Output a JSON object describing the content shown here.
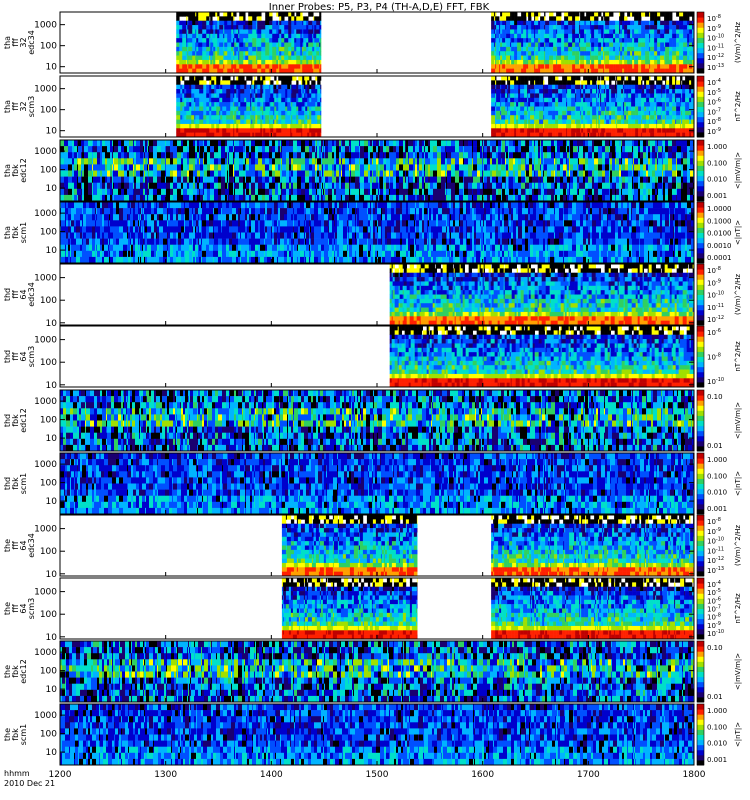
{
  "title": "Inner Probes: P5, P3, P4 (TH-A,D,E) FFT, FBK",
  "colors": {
    "frame": "#000000",
    "empty": "#ffffff",
    "colormap": [
      "#000000",
      "#1a0070",
      "#0000cc",
      "#0050ff",
      "#00b4ff",
      "#00e0c8",
      "#30d060",
      "#a0e000",
      "#ffff00",
      "#ffa000",
      "#ff2000",
      "#c00000"
    ]
  },
  "chart_data": [
    {
      "type": "heatmap",
      "ylabel": [
        "tha",
        "fff",
        "32",
        "edc34"
      ],
      "ylim": [
        5,
        4000
      ],
      "yscale": "log",
      "yticks": [
        "1000",
        "100",
        "10"
      ],
      "yticks_v": [
        1000,
        100,
        10
      ],
      "coverage": [
        [
          1310,
          1447
        ],
        [
          1608,
          1800
        ]
      ],
      "colorbar_ticks": [
        "10^-8",
        "10^-9",
        "10^-10",
        "10^-11",
        "10^-12",
        "10^-13"
      ],
      "colorbar_unit": "(V/m)^2/Hz",
      "style": "fffe",
      "seed": 11
    },
    {
      "type": "heatmap",
      "ylabel": [
        "tha",
        "fff",
        "32",
        "scm3"
      ],
      "ylim": [
        5,
        4000
      ],
      "yscale": "log",
      "yticks": [
        "1000",
        "100",
        "10"
      ],
      "yticks_v": [
        1000,
        100,
        10
      ],
      "coverage": [
        [
          1310,
          1447
        ],
        [
          1608,
          1800
        ]
      ],
      "colorbar_ticks": [
        "10^-4",
        "10^-5",
        "10^-6",
        "10^-7",
        "10^-8",
        "10^-9"
      ],
      "colorbar_unit": "nT^2/Hz",
      "style": "fffb",
      "seed": 23
    },
    {
      "type": "heatmap",
      "ylabel": [
        "tha",
        "fbk",
        "edc12"
      ],
      "ylim": [
        2,
        4000
      ],
      "yscale": "log",
      "yticks": [
        "1000",
        "100",
        "10"
      ],
      "yticks_v": [
        1000,
        100,
        10
      ],
      "coverage": [
        [
          1200,
          1800
        ]
      ],
      "colorbar_ticks": [
        "1.000",
        "0.100",
        "0.010",
        "0.001"
      ],
      "colorbar_unit": "<|mV/m|>",
      "style": "fbke",
      "seed": 37
    },
    {
      "type": "heatmap",
      "ylabel": [
        "tha",
        "fbk",
        "scm1"
      ],
      "ylim": [
        2,
        4000
      ],
      "yscale": "log",
      "yticks": [
        "1000",
        "100",
        "10"
      ],
      "yticks_v": [
        1000,
        100,
        10
      ],
      "coverage": [
        [
          1200,
          1800
        ]
      ],
      "colorbar_ticks": [
        "1.0000",
        "0.1000",
        "0.0100",
        "0.0010",
        "0.0001"
      ],
      "colorbar_unit": "<|nT|>",
      "style": "fbkb",
      "seed": 41
    },
    {
      "type": "heatmap",
      "ylabel": [
        "thd",
        "fff",
        "64",
        "edc34"
      ],
      "ylim": [
        8,
        4000
      ],
      "yscale": "log",
      "yticks": [
        "1000",
        "100",
        "10"
      ],
      "yticks_v": [
        1000,
        100,
        10
      ],
      "coverage": [
        [
          1512,
          1800
        ]
      ],
      "colorbar_ticks": [
        "10^-8",
        "10^-9",
        "10^-10",
        "10^-11",
        "10^-12"
      ],
      "colorbar_unit": "(V/m)^2/Hz",
      "style": "fffe",
      "seed": 53
    },
    {
      "type": "heatmap",
      "ylabel": [
        "thd",
        "fff",
        "64",
        "scm3"
      ],
      "ylim": [
        8,
        4000
      ],
      "yscale": "log",
      "yticks": [
        "1000",
        "100",
        "10"
      ],
      "yticks_v": [
        1000,
        100,
        10
      ],
      "coverage": [
        [
          1512,
          1800
        ]
      ],
      "colorbar_ticks": [
        "10^-6",
        "10^-8",
        "10^-10"
      ],
      "colorbar_unit": "nT^2/Hz",
      "style": "fffb",
      "seed": 67
    },
    {
      "type": "heatmap",
      "ylabel": [
        "thd",
        "fbk",
        "edc12"
      ],
      "ylim": [
        2,
        4000
      ],
      "yscale": "log",
      "yticks": [
        "1000",
        "100",
        "10"
      ],
      "yticks_v": [
        1000,
        100,
        10
      ],
      "coverage": [
        [
          1200,
          1800
        ]
      ],
      "colorbar_ticks": [
        "0.10",
        "0.01"
      ],
      "colorbar_unit": "<|mV/m|>",
      "style": "fbke",
      "seed": 71
    },
    {
      "type": "heatmap",
      "ylabel": [
        "thd",
        "fbk",
        "scm1"
      ],
      "ylim": [
        2,
        4000
      ],
      "yscale": "log",
      "yticks": [
        "1000",
        "100",
        "10"
      ],
      "yticks_v": [
        1000,
        100,
        10
      ],
      "coverage": [
        [
          1200,
          1800
        ]
      ],
      "colorbar_ticks": [
        "1.000",
        "0.100",
        "0.010",
        "0.001"
      ],
      "colorbar_unit": "<|nT|>",
      "style": "fbkb",
      "seed": 83
    },
    {
      "type": "heatmap",
      "ylabel": [
        "the",
        "fff",
        "64",
        "edc34"
      ],
      "ylim": [
        8,
        4000
      ],
      "yscale": "log",
      "yticks": [
        "1000",
        "100",
        "10"
      ],
      "yticks_v": [
        1000,
        100,
        10
      ],
      "coverage": [
        [
          1410,
          1538
        ],
        [
          1608,
          1800
        ]
      ],
      "colorbar_ticks": [
        "10^-8",
        "10^-9",
        "10^-10",
        "10^-11",
        "10^-12",
        "10^-13"
      ],
      "colorbar_unit": "(V/m)^2/Hz",
      "style": "fffe",
      "seed": 97
    },
    {
      "type": "heatmap",
      "ylabel": [
        "the",
        "fff",
        "64",
        "scm3"
      ],
      "ylim": [
        8,
        4000
      ],
      "yscale": "log",
      "yticks": [
        "1000",
        "100",
        "10"
      ],
      "yticks_v": [
        1000,
        100,
        10
      ],
      "coverage": [
        [
          1410,
          1538
        ],
        [
          1608,
          1800
        ]
      ],
      "colorbar_ticks": [
        "10^-4",
        "10^-5",
        "10^-6",
        "10^-7",
        "10^-8",
        "10^-9",
        "10^-10"
      ],
      "colorbar_unit": "nT^2/Hz",
      "style": "fffb",
      "seed": 101
    },
    {
      "type": "heatmap",
      "ylabel": [
        "the",
        "fbk",
        "edc12"
      ],
      "ylim": [
        2,
        4000
      ],
      "yscale": "log",
      "yticks": [
        "1000",
        "100",
        "10"
      ],
      "yticks_v": [
        1000,
        100,
        10
      ],
      "coverage": [
        [
          1200,
          1800
        ]
      ],
      "colorbar_ticks": [
        "0.10",
        "0.01"
      ],
      "colorbar_unit": "<|mV/m|>",
      "style": "fbke",
      "seed": 113
    },
    {
      "type": "heatmap",
      "ylabel": [
        "the",
        "fbk",
        "scm1"
      ],
      "ylim": [
        2,
        4000
      ],
      "yscale": "log",
      "yticks": [
        "1000",
        "100",
        "10"
      ],
      "yticks_v": [
        1000,
        100,
        10
      ],
      "coverage": [
        [
          1200,
          1800
        ]
      ],
      "colorbar_ticks": [
        "1.000",
        "0.100",
        "0.010",
        "0.001"
      ],
      "colorbar_unit": "<|nT|>",
      "style": "fbkb",
      "seed": 127
    }
  ],
  "xaxis": {
    "xlim": [
      1200,
      1800
    ],
    "ticks": [
      "1200",
      "1300",
      "1400",
      "1500",
      "1600",
      "1700",
      "1800"
    ],
    "ticks_v": [
      1200,
      1300,
      1400,
      1500,
      1600,
      1700,
      1800
    ],
    "label_line1": "hhmm",
    "label_line2": "2010 Dec 21"
  }
}
